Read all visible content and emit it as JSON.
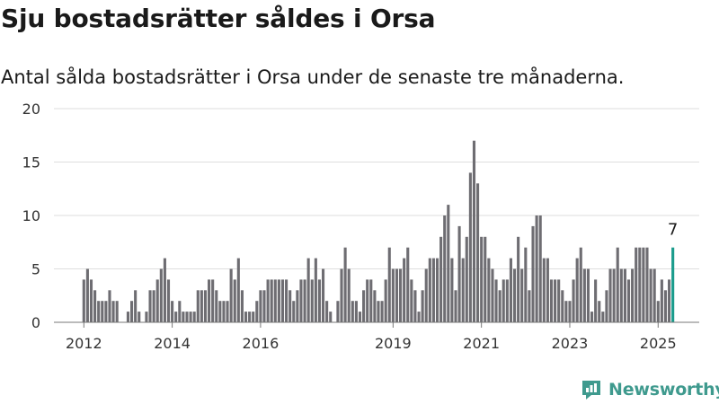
{
  "title": "Sju bostadsrätter såldes i Orsa",
  "subtitle": "Antal sålda bostadsrätter i Orsa under de senaste tre månaderna.",
  "brand": {
    "name": "Newsworthy",
    "icon": "newsworthy-logo-icon",
    "color": "#3f9a8e"
  },
  "chart_data": {
    "type": "bar",
    "ylim": [
      0,
      20
    ],
    "yticks": [
      0,
      5,
      10,
      15,
      20
    ],
    "xticks": [
      {
        "label": "2012",
        "month": 1
      },
      {
        "label": "2014",
        "month": 25
      },
      {
        "label": "2016",
        "month": 49
      },
      {
        "label": "2019",
        "month": 85
      },
      {
        "label": "2021",
        "month": 109
      },
      {
        "label": "2023",
        "month": 133
      },
      {
        "label": "2025",
        "month": 157
      }
    ],
    "values": [
      4,
      5,
      4,
      3,
      2,
      2,
      2,
      3,
      2,
      2,
      0,
      0,
      1,
      2,
      3,
      1,
      0,
      1,
      3,
      3,
      4,
      5,
      6,
      4,
      2,
      1,
      2,
      1,
      1,
      1,
      1,
      3,
      3,
      3,
      4,
      4,
      3,
      2,
      2,
      2,
      5,
      4,
      6,
      3,
      1,
      1,
      1,
      2,
      3,
      3,
      4,
      4,
      4,
      4,
      4,
      4,
      3,
      2,
      3,
      4,
      4,
      6,
      4,
      6,
      4,
      5,
      2,
      1,
      0,
      2,
      5,
      7,
      5,
      2,
      2,
      1,
      3,
      4,
      4,
      3,
      2,
      2,
      4,
      7,
      5,
      5,
      5,
      6,
      7,
      4,
      3,
      1,
      3,
      5,
      6,
      6,
      6,
      8,
      10,
      11,
      6,
      3,
      9,
      6,
      8,
      14,
      17,
      13,
      8,
      8,
      6,
      5,
      4,
      3,
      4,
      4,
      6,
      5,
      8,
      5,
      7,
      3,
      9,
      10,
      10,
      6,
      6,
      4,
      4,
      4,
      3,
      2,
      2,
      4,
      6,
      7,
      5,
      5,
      1,
      4,
      2,
      1,
      3,
      5,
      5,
      7,
      5,
      5,
      4,
      5,
      7,
      7,
      7,
      7,
      5,
      5,
      2,
      4,
      3,
      4,
      7
    ],
    "highlight": {
      "index": 160,
      "value": 7,
      "label": "7"
    },
    "colors": {
      "bar": "#6e6d72",
      "highlight": "#1a9c8c",
      "grid": "#dedede",
      "axis": "#777777"
    }
  }
}
